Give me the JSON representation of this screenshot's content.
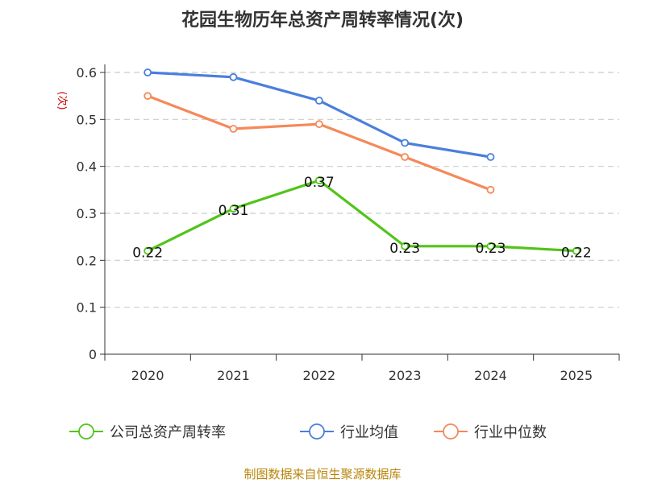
{
  "chart_data": {
    "type": "line",
    "title": "花园生物历年总资产周转率情况(次)",
    "ylabel": "(次)",
    "xlabel": "",
    "categories": [
      "2020",
      "2021",
      "2022",
      "2023",
      "2024",
      "2025"
    ],
    "y_ticks": [
      "0",
      "0.1",
      "0.2",
      "0.3",
      "0.4",
      "0.5",
      "0.6"
    ],
    "ylim": [
      0,
      0.6
    ],
    "grid": true,
    "legend_position": "bottom",
    "series": [
      {
        "name": "公司总资产周转率",
        "color": "#52c41a",
        "values": [
          0.22,
          0.31,
          0.37,
          0.23,
          0.23,
          0.22
        ],
        "labels": [
          "0.22",
          "0.31",
          "0.37",
          "0.23",
          "0.23",
          "0.22"
        ]
      },
      {
        "name": "行业均值",
        "color": "#4a7fdc",
        "values": [
          0.6,
          0.59,
          0.54,
          0.45,
          0.42,
          null
        ]
      },
      {
        "name": "行业中位数",
        "color": "#f5895a",
        "values": [
          0.55,
          0.48,
          0.49,
          0.42,
          0.35,
          null
        ]
      }
    ],
    "source": "制图数据来自恒生聚源数据库"
  }
}
